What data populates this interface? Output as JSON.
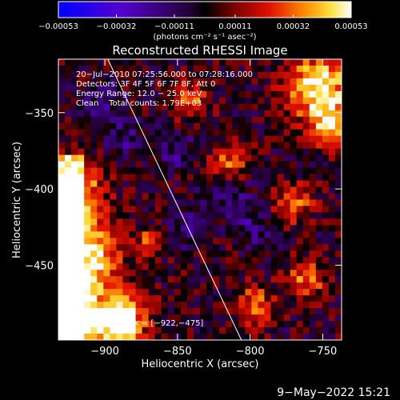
{
  "chart_data": {
    "type": "heatmap",
    "title": "Reconstructed RHESSI Image",
    "xlabel": "Heliocentric X (arcsec)",
    "ylabel": "Heliocentric Y (arcsec)",
    "xlim": [
      -932,
      -737
    ],
    "ylim": [
      -499,
      -315
    ],
    "xticks": [
      {
        "value": -900,
        "label": "−900"
      },
      {
        "value": -850,
        "label": "−850"
      },
      {
        "value": -800,
        "label": "−800"
      },
      {
        "value": -750,
        "label": "−750"
      }
    ],
    "yticks": [
      {
        "value": -350,
        "label": "−350"
      },
      {
        "value": -400,
        "label": "−400"
      },
      {
        "value": -450,
        "label": "−450"
      }
    ],
    "colorbar": {
      "range": [
        -0.00053,
        0.00053
      ],
      "ticks": [
        {
          "value": -0.00053,
          "label": "−0.00053"
        },
        {
          "value": -0.00032,
          "label": "−0.00032"
        },
        {
          "value": -0.00011,
          "label": "−0.00011"
        },
        {
          "value": 0.00011,
          "label": "0.00011"
        },
        {
          "value": 0.00032,
          "label": "0.00032"
        },
        {
          "value": 0.00053,
          "label": "0.00053"
        }
      ],
      "unit_label": "(photons cm⁻² s⁻¹ asec⁻²)"
    },
    "annotations": [
      "20−Jul−2010 07:25:56.000 to 07:28:16.000",
      "Detectors: 3F 4F 5F 6F 7F 8F, Att 0",
      "Energy Range: 12.0 − 25.0 keV",
      "Clean    Total counts: 1.79E+03"
    ],
    "peak_label": "Position of Peak = [−922,−475]",
    "peak": [
      -922,
      -475
    ],
    "limb_line": [
      [
        -898,
        -315
      ],
      [
        -806,
        -499
      ]
    ],
    "grid": false,
    "legend": "none"
  },
  "footer": {
    "date": "9−May−2022 15:21"
  }
}
